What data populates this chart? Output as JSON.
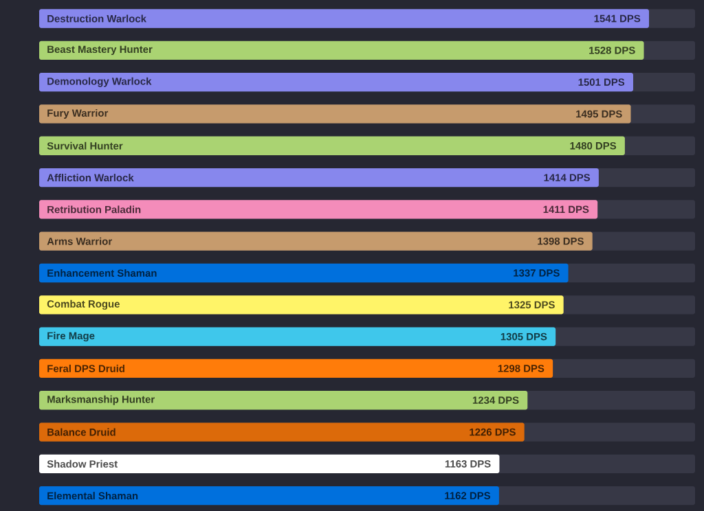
{
  "chart_data": {
    "type": "bar",
    "orientation": "horizontal",
    "categories": [
      "Destruction Warlock",
      "Beast Mastery Hunter",
      "Demonology Warlock",
      "Fury Warrior",
      "Survival Hunter",
      "Affliction Warlock",
      "Retribution Paladin",
      "Arms Warrior",
      "Enhancement Shaman",
      "Combat Rogue",
      "Fire Mage",
      "Feral DPS Druid",
      "Marksmanship Hunter",
      "Balance Druid",
      "Shadow Priest",
      "Elemental Shaman"
    ],
    "values": [
      1541,
      1528,
      1501,
      1495,
      1480,
      1414,
      1411,
      1398,
      1337,
      1325,
      1305,
      1298,
      1234,
      1226,
      1163,
      1162
    ],
    "colors": [
      "#8787ed",
      "#aad372",
      "#8787ed",
      "#c69b6d",
      "#aad372",
      "#8787ed",
      "#f48cba",
      "#c69b6d",
      "#0070dd",
      "#fff468",
      "#3fc7eb",
      "#ff7c0a",
      "#aad372",
      "#dc6a0a",
      "#ffffff",
      "#0070dd"
    ],
    "value_labels": [
      "1541 DPS",
      "1528 DPS",
      "1501 DPS",
      "1495 DPS",
      "1480 DPS",
      "1414 DPS",
      "1411 DPS",
      "1398 DPS",
      "1337 DPS",
      "1325 DPS",
      "1305 DPS",
      "1298 DPS",
      "1234 DPS",
      "1226 DPS",
      "1163 DPS",
      "1162 DPS"
    ],
    "tick_labels": "y"
  }
}
